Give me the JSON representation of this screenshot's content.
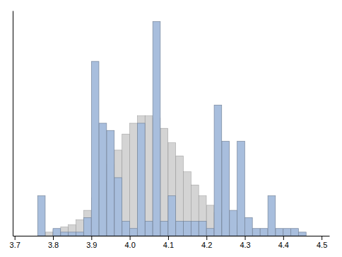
{
  "chart_data": {
    "type": "histogram",
    "bins": [
      3.7,
      3.72,
      3.74,
      3.76,
      3.78,
      3.8,
      3.82,
      3.84,
      3.86,
      3.88,
      3.9,
      3.92,
      3.94,
      3.96,
      3.98,
      4.0,
      4.02,
      4.04,
      4.06,
      4.08,
      4.1,
      4.12,
      4.14,
      4.16,
      4.18,
      4.2,
      4.22,
      4.24,
      4.26,
      4.28,
      4.3,
      4.32,
      4.34,
      4.36,
      4.38,
      4.4,
      4.42,
      4.44,
      4.46,
      4.48,
      4.5
    ],
    "series": [
      {
        "color": "#d4d4d4",
        "values": [
          0,
          0,
          0,
          0,
          5,
          8,
          12,
          15,
          22,
          35,
          52,
          75,
          98,
          118,
          140,
          155,
          165,
          165,
          162,
          148,
          128,
          110,
          88,
          70,
          55,
          42,
          32,
          22,
          14,
          8,
          5,
          3,
          0,
          0,
          0,
          0,
          0,
          0,
          0,
          0
        ]
      },
      {
        "color": "#a8bedd",
        "values": [
          0,
          0,
          0,
          55,
          0,
          10,
          5,
          5,
          5,
          25,
          240,
          155,
          145,
          80,
          20,
          10,
          155,
          20,
          295,
          20,
          55,
          20,
          20,
          20,
          20,
          10,
          180,
          130,
          35,
          130,
          25,
          10,
          10,
          55,
          10,
          10,
          10,
          5,
          0,
          0
        ]
      }
    ],
    "xlim": [
      3.695,
      4.52
    ],
    "ylim": [
      0,
      310
    ],
    "xticks": [
      3.7,
      3.8,
      3.9,
      {
        "value": 4.0,
        "label": "4.0"
      },
      4.1,
      4.2,
      4.3,
      4.4,
      4.5
    ],
    "tick_labels": "x"
  }
}
